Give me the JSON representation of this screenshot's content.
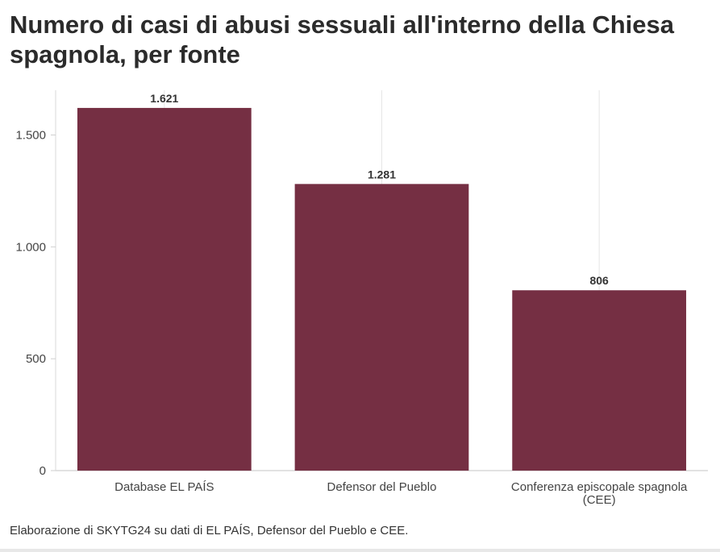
{
  "chart_data": {
    "type": "bar",
    "title": "Numero di casi di abusi sessuali all'interno della Chiesa spagnola, per fonte",
    "categories": [
      "Database EL PAÍS",
      "Defensor del Pueblo",
      "Conferenza episcopale spagnola (CEE)"
    ],
    "values": [
      1621,
      1281,
      806
    ],
    "data_labels": [
      "1.621",
      "1.281",
      "806"
    ],
    "yticks": [
      0,
      500,
      1000,
      1500
    ],
    "ytick_labels": [
      "0",
      "500",
      "1.000",
      "1.500"
    ],
    "ylim": [
      0,
      1700
    ],
    "grid": true,
    "bar_color": "#752f43",
    "source": "Elaborazione di SKYTG24 su dati di EL PAÍS, Defensor del Pueblo e CEE."
  }
}
